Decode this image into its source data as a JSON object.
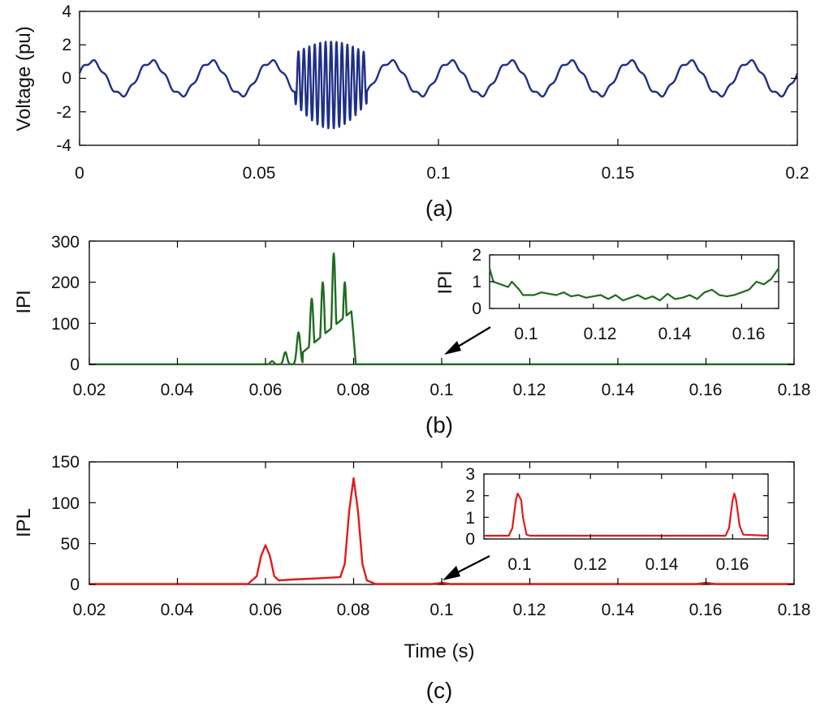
{
  "chart_data": [
    {
      "id": "a",
      "type": "line",
      "caption": "(a)",
      "xlabel": "",
      "ylabel": "Voltage (pu)",
      "xlim": [
        0,
        0.2
      ],
      "ylim": [
        -4,
        4
      ],
      "xticks": [
        "0",
        "0.05",
        "0.1",
        "0.15",
        "0.2"
      ],
      "yticks": [
        "-4",
        "-2",
        "0",
        "2",
        "4"
      ],
      "series": [
        {
          "name": "voltage",
          "color": "#1f2f86",
          "signal": {
            "kind": "sine_with_harmonic",
            "fundamental_hz": 60,
            "amplitude": 1.0,
            "harmonic_order": 5,
            "harmonic_amplitude": 0.12,
            "disturbance": {
              "t_start": 0.06,
              "t_end": 0.08,
              "freq_hz": 660,
              "amplitude": [
                1.5,
                2.6
              ]
            }
          }
        }
      ]
    },
    {
      "id": "b",
      "type": "line",
      "caption": "(b)",
      "xlabel": "",
      "ylabel": "IPI",
      "xlim": [
        0.02,
        0.18
      ],
      "ylim": [
        0,
        300
      ],
      "xticks": [
        "0.02",
        "0.04",
        "0.06",
        "0.08",
        "0.1",
        "0.12",
        "0.14",
        "0.16",
        "0.18"
      ],
      "yticks": [
        "0",
        "100",
        "200",
        "300"
      ],
      "series": [
        {
          "name": "IPI",
          "color": "#1f6b1f",
          "peaks": [
            [
              0.0615,
              8
            ],
            [
              0.0645,
              30
            ],
            [
              0.0675,
              78
            ],
            [
              0.0705,
              160
            ],
            [
              0.073,
              200
            ],
            [
              0.0755,
              270
            ],
            [
              0.078,
              200
            ]
          ],
          "envelope_end": 0.0805
        }
      ],
      "inset": {
        "xlim": [
          0.092,
          0.17
        ],
        "ylim": [
          0,
          2
        ],
        "xticks": [
          "0.1",
          "0.12",
          "0.14",
          "0.16"
        ],
        "xtick_values": [
          0.1,
          0.12,
          0.14,
          0.16
        ],
        "yticks": [
          "0",
          "1",
          "2"
        ],
        "ylabel": "IPI",
        "points": [
          [
            0.092,
            1.5
          ],
          [
            0.093,
            1.0
          ],
          [
            0.095,
            0.9
          ],
          [
            0.097,
            0.8
          ],
          [
            0.098,
            1.0
          ],
          [
            0.1,
            0.7
          ],
          [
            0.101,
            0.5
          ],
          [
            0.104,
            0.5
          ],
          [
            0.106,
            0.6
          ],
          [
            0.108,
            0.55
          ],
          [
            0.11,
            0.5
          ],
          [
            0.112,
            0.6
          ],
          [
            0.114,
            0.45
          ],
          [
            0.116,
            0.5
          ],
          [
            0.118,
            0.4
          ],
          [
            0.12,
            0.45
          ],
          [
            0.122,
            0.5
          ],
          [
            0.124,
            0.35
          ],
          [
            0.126,
            0.5
          ],
          [
            0.128,
            0.3
          ],
          [
            0.13,
            0.4
          ],
          [
            0.132,
            0.5
          ],
          [
            0.134,
            0.35
          ],
          [
            0.136,
            0.45
          ],
          [
            0.138,
            0.3
          ],
          [
            0.14,
            0.55
          ],
          [
            0.142,
            0.35
          ],
          [
            0.144,
            0.4
          ],
          [
            0.146,
            0.5
          ],
          [
            0.148,
            0.35
          ],
          [
            0.15,
            0.6
          ],
          [
            0.152,
            0.7
          ],
          [
            0.154,
            0.5
          ],
          [
            0.156,
            0.45
          ],
          [
            0.158,
            0.5
          ],
          [
            0.16,
            0.6
          ],
          [
            0.162,
            0.7
          ],
          [
            0.164,
            1.0
          ],
          [
            0.166,
            0.9
          ],
          [
            0.168,
            1.1
          ],
          [
            0.17,
            1.5
          ]
        ],
        "arrow_target_x": 0.1
      }
    },
    {
      "id": "c",
      "type": "line",
      "caption": "(c)",
      "xlabel": "Time (s)",
      "ylabel": "IPL",
      "xlim": [
        0.02,
        0.18
      ],
      "ylim": [
        0,
        150
      ],
      "xticks": [
        "0.02",
        "0.04",
        "0.06",
        "0.08",
        "0.1",
        "0.12",
        "0.14",
        "0.16",
        "0.18"
      ],
      "yticks": [
        "0",
        "50",
        "100",
        "150"
      ],
      "series": [
        {
          "name": "IPL",
          "color": "#e21a1a",
          "points": [
            [
              0.02,
              0.5
            ],
            [
              0.056,
              0.5
            ],
            [
              0.058,
              10
            ],
            [
              0.059,
              35
            ],
            [
              0.06,
              48
            ],
            [
              0.061,
              35
            ],
            [
              0.062,
              10
            ],
            [
              0.063,
              5
            ],
            [
              0.066,
              6
            ],
            [
              0.07,
              7
            ],
            [
              0.074,
              8
            ],
            [
              0.077,
              9
            ],
            [
              0.078,
              25
            ],
            [
              0.079,
              90
            ],
            [
              0.08,
              130
            ],
            [
              0.081,
              90
            ],
            [
              0.082,
              25
            ],
            [
              0.083,
              5
            ],
            [
              0.085,
              0.5
            ],
            [
              0.098,
              0.5
            ],
            [
              0.1,
              2
            ],
            [
              0.102,
              0.5
            ],
            [
              0.158,
              0.5
            ],
            [
              0.16,
              2
            ],
            [
              0.162,
              0.5
            ],
            [
              0.18,
              0.5
            ]
          ]
        }
      ],
      "inset": {
        "xlim": [
          0.09,
          0.17
        ],
        "ylim": [
          0,
          3
        ],
        "xticks": [
          "0.1",
          "0.12",
          "0.14",
          "0.16"
        ],
        "xtick_values": [
          0.1,
          0.12,
          0.14,
          0.16
        ],
        "yticks": [
          "0",
          "1",
          "2",
          "3"
        ],
        "ylabel": "",
        "points": [
          [
            0.09,
            0.15
          ],
          [
            0.097,
            0.15
          ],
          [
            0.098,
            0.5
          ],
          [
            0.099,
            1.8
          ],
          [
            0.0995,
            2.1
          ],
          [
            0.1005,
            1.8
          ],
          [
            0.101,
            1.0
          ],
          [
            0.102,
            0.2
          ],
          [
            0.103,
            0.15
          ],
          [
            0.158,
            0.15
          ],
          [
            0.159,
            0.5
          ],
          [
            0.16,
            1.8
          ],
          [
            0.1605,
            2.1
          ],
          [
            0.161,
            1.8
          ],
          [
            0.162,
            0.6
          ],
          [
            0.163,
            0.2
          ],
          [
            0.17,
            0.15
          ]
        ],
        "arrow_target_x": 0.1
      }
    }
  ]
}
